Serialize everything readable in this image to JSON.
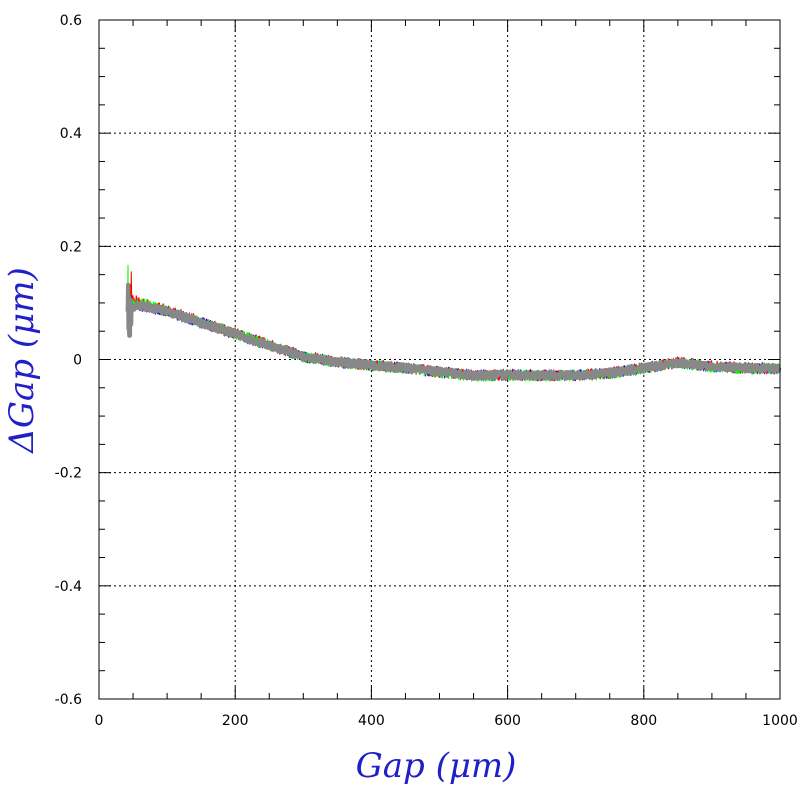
{
  "chart_data": {
    "type": "line",
    "title": "",
    "xlabel": "Gap  (μm)",
    "ylabel": "ΔGap  (μm)",
    "xlim": [
      0,
      1000
    ],
    "ylim": [
      -0.6,
      0.6
    ],
    "x_ticks": [
      "0",
      "200",
      "400",
      "600",
      "800",
      "1000"
    ],
    "y_ticks": [
      "0.6",
      "0.4",
      "0.2",
      "0",
      "-0.2",
      "-0.4",
      "-0.6"
    ],
    "grid": true,
    "legend": "none",
    "series": [
      {
        "color": "#0000ff",
        "values": [
          [
            42,
            0.1
          ],
          [
            60,
            0.095
          ],
          [
            100,
            0.085
          ],
          [
            150,
            0.065
          ],
          [
            200,
            0.045
          ],
          [
            250,
            0.025
          ],
          [
            300,
            0.005
          ],
          [
            350,
            -0.005
          ],
          [
            400,
            -0.01
          ],
          [
            450,
            -0.015
          ],
          [
            500,
            -0.022
          ],
          [
            550,
            -0.028
          ],
          [
            600,
            -0.027
          ],
          [
            650,
            -0.028
          ],
          [
            700,
            -0.028
          ],
          [
            750,
            -0.024
          ],
          [
            800,
            -0.015
          ],
          [
            850,
            -0.006
          ],
          [
            900,
            -0.012
          ],
          [
            950,
            -0.015
          ],
          [
            1000,
            -0.016
          ]
        ]
      },
      {
        "color": "#ff0000",
        "values": [
          [
            42,
            0.11
          ],
          [
            60,
            0.1
          ],
          [
            100,
            0.087
          ],
          [
            150,
            0.067
          ],
          [
            200,
            0.046
          ],
          [
            250,
            0.026
          ],
          [
            300,
            0.006
          ],
          [
            350,
            -0.004
          ],
          [
            400,
            -0.01
          ],
          [
            450,
            -0.015
          ],
          [
            500,
            -0.022
          ],
          [
            550,
            -0.028
          ],
          [
            600,
            -0.027
          ],
          [
            650,
            -0.028
          ],
          [
            700,
            -0.028
          ],
          [
            750,
            -0.024
          ],
          [
            800,
            -0.015
          ],
          [
            850,
            -0.005
          ],
          [
            900,
            -0.012
          ],
          [
            950,
            -0.015
          ],
          [
            1000,
            -0.016
          ]
        ]
      },
      {
        "color": "#00ff00",
        "values": [
          [
            42,
            0.1
          ],
          [
            60,
            0.1
          ],
          [
            100,
            0.086
          ],
          [
            150,
            0.066
          ],
          [
            200,
            0.045
          ],
          [
            250,
            0.025
          ],
          [
            300,
            0.005
          ],
          [
            350,
            -0.005
          ],
          [
            400,
            -0.01
          ],
          [
            450,
            -0.016
          ],
          [
            500,
            -0.023
          ],
          [
            550,
            -0.029
          ],
          [
            600,
            -0.028
          ],
          [
            650,
            -0.029
          ],
          [
            700,
            -0.028
          ],
          [
            750,
            -0.025
          ],
          [
            800,
            -0.016
          ],
          [
            850,
            -0.006
          ],
          [
            900,
            -0.013
          ],
          [
            950,
            -0.016
          ],
          [
            1000,
            -0.017
          ]
        ]
      },
      {
        "color": "#888888",
        "values": [
          [
            42,
            0.09
          ],
          [
            60,
            0.095
          ],
          [
            100,
            0.085
          ],
          [
            150,
            0.065
          ],
          [
            200,
            0.045
          ],
          [
            250,
            0.025
          ],
          [
            300,
            0.005
          ],
          [
            350,
            -0.005
          ],
          [
            400,
            -0.01
          ],
          [
            450,
            -0.015
          ],
          [
            500,
            -0.022
          ],
          [
            550,
            -0.028
          ],
          [
            600,
            -0.027
          ],
          [
            650,
            -0.028
          ],
          [
            700,
            -0.028
          ],
          [
            750,
            -0.024
          ],
          [
            800,
            -0.015
          ],
          [
            850,
            -0.006
          ],
          [
            900,
            -0.012
          ],
          [
            950,
            -0.015
          ],
          [
            1000,
            -0.016
          ]
        ]
      }
    ]
  }
}
